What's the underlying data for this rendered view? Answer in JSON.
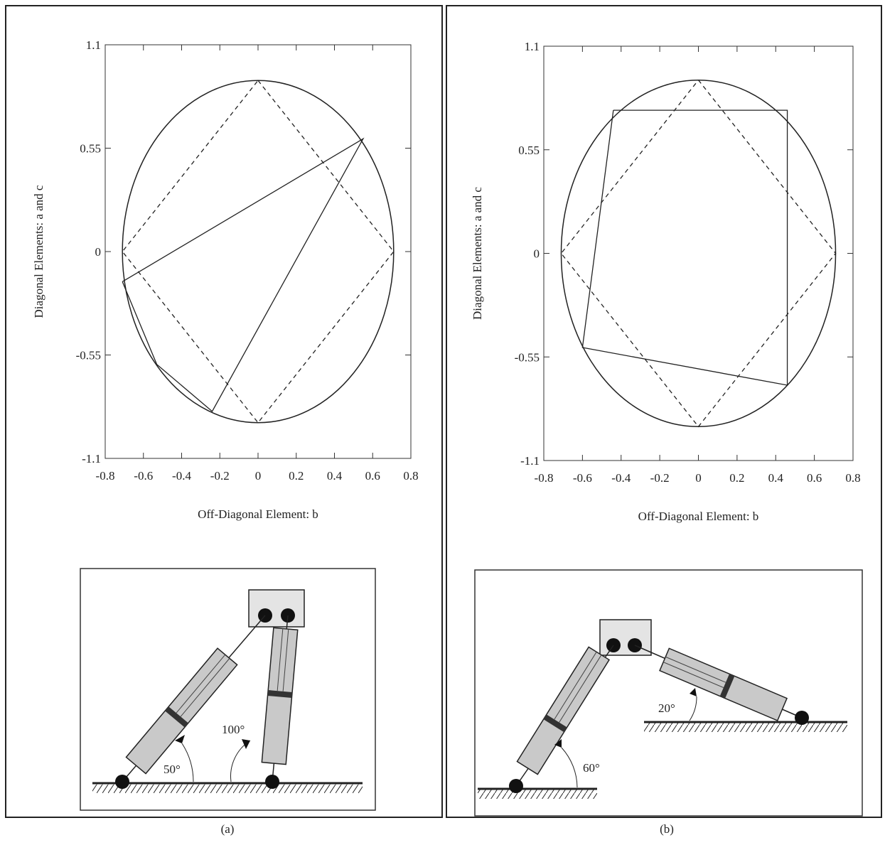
{
  "chart_data": [
    {
      "type": "line",
      "xlabel": "Off-Diagonal Element: b",
      "ylabel": "Diagonal Elements: a and c",
      "xlim": [
        -0.8,
        0.8
      ],
      "ylim": [
        -1.1,
        1.1
      ],
      "xticks": [
        -0.8,
        -0.6,
        -0.4,
        -0.2,
        0,
        0.2,
        0.4,
        0.6,
        0.8
      ],
      "yticks": [
        -1.1,
        -0.55,
        0,
        0.55,
        1.1
      ],
      "ellipse": {
        "cx": 0,
        "cy": 0,
        "rx": 0.71,
        "ry": 0.91
      },
      "series": [
        {
          "style": "dashed",
          "x": [
            0,
            0.71,
            0,
            -0.71,
            0
          ],
          "values": [
            0.91,
            0,
            -0.91,
            0,
            0.91
          ]
        },
        {
          "style": "solid",
          "x": [
            -0.71,
            0.55,
            -0.24,
            -0.53,
            -0.71
          ],
          "values": [
            -0.16,
            0.6,
            -0.85,
            -0.6,
            -0.16
          ]
        }
      ]
    },
    {
      "type": "line",
      "xlabel": "Off-Diagonal Element: b",
      "ylabel": "Diagonal Elements: a and c",
      "xlim": [
        -0.8,
        0.8
      ],
      "ylim": [
        -1.1,
        1.1
      ],
      "xticks": [
        -0.8,
        -0.6,
        -0.4,
        -0.2,
        0,
        0.2,
        0.4,
        0.6,
        0.8
      ],
      "yticks": [
        -1.1,
        -0.55,
        0,
        0.55,
        1.1
      ],
      "ellipse": {
        "cx": 0,
        "cy": 0,
        "rx": 0.71,
        "ry": 0.92
      },
      "series": [
        {
          "style": "dashed",
          "x": [
            0,
            0.71,
            0,
            -0.71,
            0
          ],
          "values": [
            0.92,
            0,
            -0.92,
            0,
            0.92
          ]
        },
        {
          "style": "solid",
          "x": [
            -0.44,
            0.46,
            0.46,
            -0.6,
            -0.44
          ],
          "values": [
            0.76,
            0.76,
            -0.7,
            -0.5,
            0.76
          ]
        }
      ]
    }
  ],
  "diagrams": [
    {
      "caption": "(a)",
      "angles": [
        "50°",
        "100°"
      ]
    },
    {
      "caption": "(b)",
      "angles": [
        "20°",
        "60°"
      ]
    }
  ]
}
